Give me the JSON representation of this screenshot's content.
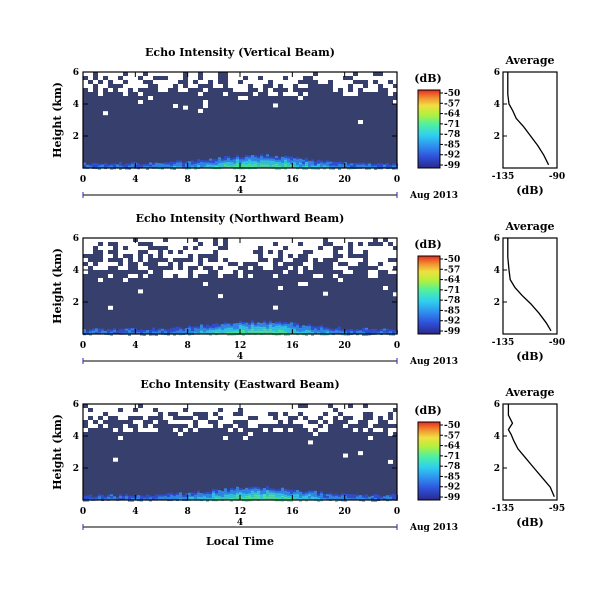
{
  "chart_data": [
    {
      "type": "heatmap",
      "title": "Echo Intensity (Vertical Beam)",
      "ylabel": "Height (km)",
      "xticks": [
        "0",
        "4",
        "8",
        "12",
        "16",
        "20",
        "0"
      ],
      "yticks": [
        "6",
        "4",
        "2"
      ],
      "day_marker": "4",
      "date_label": "Aug 2013",
      "xlim": [
        0,
        24
      ],
      "ylim": [
        0,
        6
      ],
      "colorbar": {
        "unit": "(dB)",
        "ticks": [
          "-50",
          "-57",
          "-64",
          "-71",
          "-78",
          "-85",
          "-92",
          "-99"
        ],
        "range": [
          -99,
          -50
        ]
      },
      "noise_threshold_km": 4.6,
      "average_profile": {
        "title": "Average",
        "xlabel": "(dB)",
        "xticks": [
          "-135",
          "-90"
        ],
        "yticks": [
          "6",
          "4",
          "2"
        ],
        "xlim": [
          -135,
          -90
        ],
        "ylim": [
          0,
          6
        ],
        "points": [
          [
            -97,
            0.2
          ],
          [
            -101,
            0.8
          ],
          [
            -106,
            1.4
          ],
          [
            -112,
            2.0
          ],
          [
            -118,
            2.6
          ],
          [
            -124,
            3.1
          ],
          [
            -127,
            3.6
          ],
          [
            -130,
            4.0
          ],
          [
            -131,
            4.6
          ],
          [
            -131,
            5.2
          ],
          [
            -131,
            6.0
          ]
        ]
      }
    },
    {
      "type": "heatmap",
      "title": "Echo Intensity (Northward Beam)",
      "ylabel": "Height (km)",
      "xticks": [
        "0",
        "4",
        "8",
        "12",
        "16",
        "20",
        "0"
      ],
      "yticks": [
        "6",
        "4",
        "2"
      ],
      "day_marker": "4",
      "date_label": "Aug 2013",
      "xlim": [
        0,
        24
      ],
      "ylim": [
        0,
        6
      ],
      "colorbar": {
        "unit": "(dB)",
        "ticks": [
          "-50",
          "-57",
          "-64",
          "-71",
          "-78",
          "-85",
          "-92",
          "-99"
        ],
        "range": [
          -99,
          -50
        ]
      },
      "noise_threshold_km": 3.6,
      "average_profile": {
        "title": "Average",
        "xlabel": "(dB)",
        "xticks": [
          "-135",
          "-90"
        ],
        "yticks": [
          "6",
          "4",
          "2"
        ],
        "xlim": [
          -135,
          -90
        ],
        "ylim": [
          0,
          6
        ],
        "points": [
          [
            -95,
            0.2
          ],
          [
            -99,
            0.7
          ],
          [
            -105,
            1.3
          ],
          [
            -112,
            1.9
          ],
          [
            -119,
            2.4
          ],
          [
            -125,
            2.9
          ],
          [
            -129,
            3.4
          ],
          [
            -130,
            4.0
          ],
          [
            -131,
            4.8
          ],
          [
            -131,
            5.4
          ],
          [
            -131,
            6.0
          ]
        ]
      }
    },
    {
      "type": "heatmap",
      "title": "Echo Intensity (Eastward Beam)",
      "ylabel": "Height (km)",
      "xticks": [
        "0",
        "4",
        "8",
        "12",
        "16",
        "20",
        "0"
      ],
      "yticks": [
        "6",
        "4",
        "2"
      ],
      "day_marker": "4",
      "date_label": "Aug 2013",
      "xlabel": "Local Time",
      "xlim": [
        0,
        24
      ],
      "ylim": [
        0,
        6
      ],
      "colorbar": {
        "unit": "(dB)",
        "ticks": [
          "-50",
          "-57",
          "-64",
          "-71",
          "-78",
          "-85",
          "-92",
          "-99"
        ],
        "range": [
          -99,
          -50
        ]
      },
      "noise_threshold_km": 4.4,
      "average_profile": {
        "title": "Average",
        "xlabel": "(dB)",
        "xticks": [
          "-135",
          "-95"
        ],
        "yticks": [
          "6",
          "4",
          "2"
        ],
        "xlim": [
          -135,
          -95
        ],
        "ylim": [
          0,
          6
        ],
        "points": [
          [
            -97,
            0.2
          ],
          [
            -100,
            0.8
          ],
          [
            -106,
            1.4
          ],
          [
            -112,
            2.0
          ],
          [
            -118,
            2.6
          ],
          [
            -124,
            3.2
          ],
          [
            -127,
            3.7
          ],
          [
            -129,
            4.1
          ],
          [
            -131,
            4.4
          ],
          [
            -128,
            4.8
          ],
          [
            -131,
            5.3
          ],
          [
            -131,
            6.0
          ]
        ]
      }
    }
  ],
  "colors": {
    "background_echo": "#373f6d",
    "colormap": [
      "#2a2a8a",
      "#2f4fd8",
      "#2f8ff0",
      "#2fd0f0",
      "#4ff0a0",
      "#b0f040",
      "#f0e040",
      "#f09030",
      "#e82a20"
    ]
  }
}
